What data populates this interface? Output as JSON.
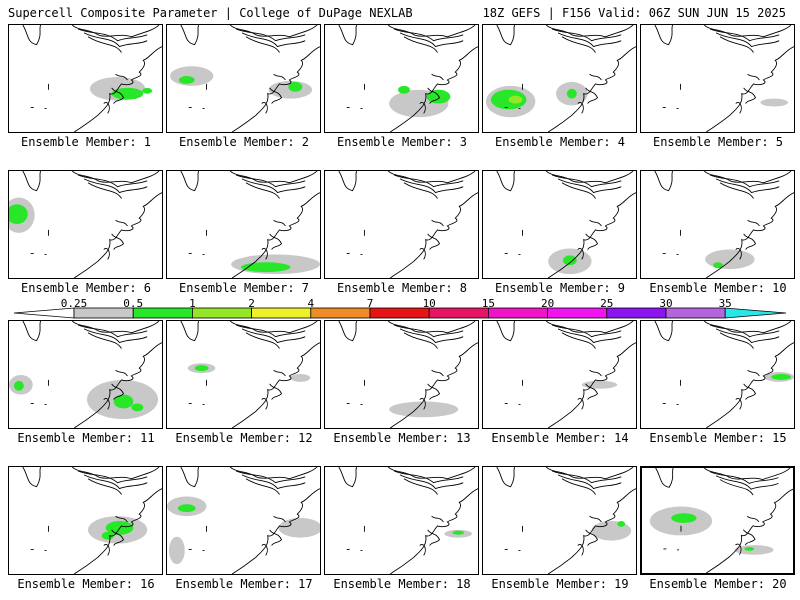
{
  "header": {
    "left_title": "Supercell Composite Parameter | College of DuPage NEXLAB",
    "right_title": "18Z GEFS | F156 Valid: 06Z SUN JUN 15 2025"
  },
  "colorbar": {
    "levels": [
      "0.25",
      "0.5",
      "1",
      "2",
      "4",
      "7",
      "10",
      "15",
      "20",
      "25",
      "30",
      "35"
    ],
    "colors": [
      "#c8c8c8",
      "#28e628",
      "#96e628",
      "#f0f028",
      "#f08c28",
      "#e61414",
      "#e61464",
      "#f014c8",
      "#f014f0",
      "#8c14f0",
      "#b464dc",
      "#28e6e6"
    ]
  },
  "members": [
    {
      "label": "Ensemble Member: 1",
      "blobs": [
        {
          "x": 110,
          "y": 65,
          "rx": 28,
          "ry": 12,
          "c": 0
        },
        {
          "x": 120,
          "y": 70,
          "rx": 16,
          "ry": 6,
          "c": 1
        },
        {
          "x": 140,
          "y": 67,
          "rx": 5,
          "ry": 3,
          "c": 1
        }
      ]
    },
    {
      "label": "Ensemble Member: 2",
      "blobs": [
        {
          "x": 25,
          "y": 52,
          "rx": 22,
          "ry": 10,
          "c": 0
        },
        {
          "x": 20,
          "y": 56,
          "rx": 8,
          "ry": 4,
          "c": 1
        },
        {
          "x": 125,
          "y": 66,
          "rx": 22,
          "ry": 9,
          "c": 0
        },
        {
          "x": 130,
          "y": 63,
          "rx": 7,
          "ry": 5,
          "c": 1
        }
      ]
    },
    {
      "label": "Ensemble Member: 3",
      "blobs": [
        {
          "x": 95,
          "y": 80,
          "rx": 30,
          "ry": 14,
          "c": 0
        },
        {
          "x": 115,
          "y": 73,
          "rx": 12,
          "ry": 7,
          "c": 1
        },
        {
          "x": 80,
          "y": 66,
          "rx": 6,
          "ry": 4,
          "c": 1
        }
      ]
    },
    {
      "label": "Ensemble Member: 4",
      "blobs": [
        {
          "x": 28,
          "y": 78,
          "rx": 25,
          "ry": 16,
          "c": 0
        },
        {
          "x": 26,
          "y": 76,
          "rx": 18,
          "ry": 10,
          "c": 1
        },
        {
          "x": 33,
          "y": 76,
          "rx": 7,
          "ry": 4,
          "c": 2
        },
        {
          "x": 90,
          "y": 70,
          "rx": 16,
          "ry": 12,
          "c": 0
        },
        {
          "x": 90,
          "y": 70,
          "rx": 5,
          "ry": 5,
          "c": 1
        }
      ]
    },
    {
      "label": "Ensemble Member: 5",
      "blobs": [
        {
          "x": 135,
          "y": 79,
          "rx": 14,
          "ry": 4,
          "c": 0
        }
      ]
    },
    {
      "label": "Ensemble Member: 6",
      "blobs": [
        {
          "x": 10,
          "y": 45,
          "rx": 16,
          "ry": 18,
          "c": 0
        },
        {
          "x": 8,
          "y": 44,
          "rx": 11,
          "ry": 10,
          "c": 1
        }
      ]
    },
    {
      "label": "Ensemble Member: 7",
      "blobs": [
        {
          "x": 110,
          "y": 95,
          "rx": 45,
          "ry": 10,
          "c": 0
        },
        {
          "x": 100,
          "y": 98,
          "rx": 25,
          "ry": 5,
          "c": 1
        }
      ]
    },
    {
      "label": "Ensemble Member: 8",
      "blobs": []
    },
    {
      "label": "Ensemble Member: 9",
      "blobs": [
        {
          "x": 88,
          "y": 92,
          "rx": 22,
          "ry": 13,
          "c": 0
        },
        {
          "x": 88,
          "y": 91,
          "rx": 7,
          "ry": 5,
          "c": 1
        }
      ]
    },
    {
      "label": "Ensemble Member: 10",
      "blobs": [
        {
          "x": 90,
          "y": 90,
          "rx": 25,
          "ry": 10,
          "c": 0
        },
        {
          "x": 78,
          "y": 96,
          "rx": 5,
          "ry": 3,
          "c": 1
        }
      ]
    },
    {
      "label": "Ensemble Member: 11",
      "blobs": [
        {
          "x": 12,
          "y": 65,
          "rx": 12,
          "ry": 10,
          "c": 0
        },
        {
          "x": 10,
          "y": 66,
          "rx": 5,
          "ry": 5,
          "c": 1
        },
        {
          "x": 115,
          "y": 80,
          "rx": 36,
          "ry": 20,
          "c": 0
        },
        {
          "x": 116,
          "y": 82,
          "rx": 10,
          "ry": 7,
          "c": 1
        },
        {
          "x": 130,
          "y": 88,
          "rx": 6,
          "ry": 4,
          "c": 1
        }
      ]
    },
    {
      "label": "Ensemble Member: 12",
      "blobs": [
        {
          "x": 35,
          "y": 48,
          "rx": 14,
          "ry": 5,
          "c": 0
        },
        {
          "x": 35,
          "y": 48,
          "rx": 7,
          "ry": 3,
          "c": 1
        },
        {
          "x": 135,
          "y": 58,
          "rx": 10,
          "ry": 4,
          "c": 0
        }
      ]
    },
    {
      "label": "Ensemble Member: 13",
      "blobs": [
        {
          "x": 100,
          "y": 90,
          "rx": 35,
          "ry": 8,
          "c": 0
        }
      ]
    },
    {
      "label": "Ensemble Member: 14",
      "blobs": [
        {
          "x": 118,
          "y": 65,
          "rx": 18,
          "ry": 4,
          "c": 0
        }
      ]
    },
    {
      "label": "Ensemble Member: 15",
      "blobs": [
        {
          "x": 140,
          "y": 57,
          "rx": 15,
          "ry": 5,
          "c": 0
        },
        {
          "x": 142,
          "y": 57,
          "rx": 10,
          "ry": 3,
          "c": 1
        }
      ]
    },
    {
      "label": "Ensemble Member: 16",
      "blobs": [
        {
          "x": 110,
          "y": 64,
          "rx": 30,
          "ry": 14,
          "c": 0
        },
        {
          "x": 112,
          "y": 62,
          "rx": 14,
          "ry": 7,
          "c": 1
        },
        {
          "x": 100,
          "y": 70,
          "rx": 6,
          "ry": 4,
          "c": 1
        }
      ]
    },
    {
      "label": "Ensemble Member: 17",
      "blobs": [
        {
          "x": 20,
          "y": 40,
          "rx": 20,
          "ry": 10,
          "c": 0
        },
        {
          "x": 20,
          "y": 42,
          "rx": 9,
          "ry": 4,
          "c": 1
        },
        {
          "x": 135,
          "y": 62,
          "rx": 22,
          "ry": 10,
          "c": 0
        },
        {
          "x": 10,
          "y": 85,
          "rx": 8,
          "ry": 14,
          "c": 0
        }
      ]
    },
    {
      "label": "Ensemble Member: 18",
      "blobs": [
        {
          "x": 135,
          "y": 68,
          "rx": 14,
          "ry": 4,
          "c": 0
        },
        {
          "x": 135,
          "y": 67,
          "rx": 6,
          "ry": 2,
          "c": 1
        }
      ]
    },
    {
      "label": "Ensemble Member: 19",
      "blobs": [
        {
          "x": 130,
          "y": 65,
          "rx": 20,
          "ry": 10,
          "c": 0
        },
        {
          "x": 140,
          "y": 58,
          "rx": 4,
          "ry": 3,
          "c": 1
        }
      ]
    },
    {
      "label": "Ensemble Member: 20",
      "blobs": [
        {
          "x": 40,
          "y": 55,
          "rx": 32,
          "ry": 15,
          "c": 0
        },
        {
          "x": 43,
          "y": 52,
          "rx": 13,
          "ry": 5,
          "c": 1
        },
        {
          "x": 115,
          "y": 85,
          "rx": 20,
          "ry": 5,
          "c": 0
        },
        {
          "x": 110,
          "y": 84,
          "rx": 5,
          "ry": 2,
          "c": 1
        }
      ]
    }
  ],
  "selected_member": 20
}
